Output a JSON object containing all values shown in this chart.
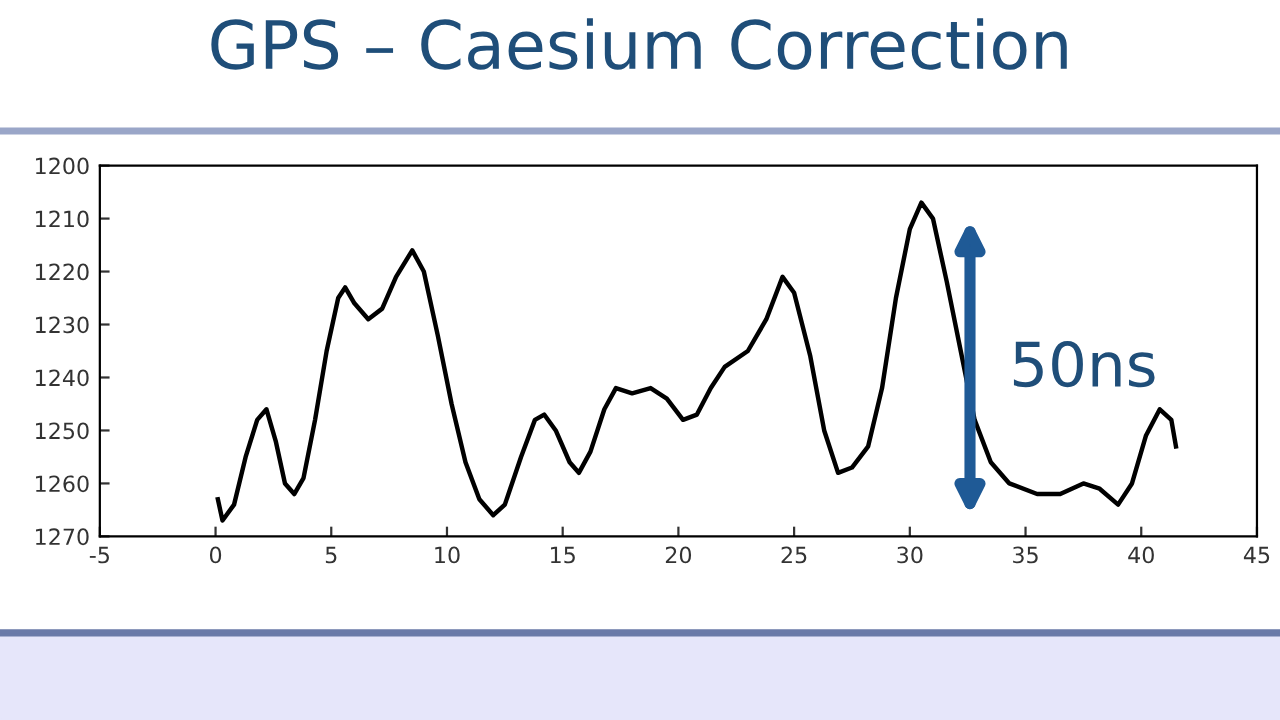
{
  "chart_data": {
    "type": "line",
    "title": "GPS – Caesium Correction",
    "x": [
      0.1,
      0.3,
      0.8,
      1.3,
      1.8,
      2.2,
      2.6,
      3.0,
      3.4,
      3.8,
      4.3,
      4.8,
      5.3,
      5.6,
      6.0,
      6.6,
      7.2,
      7.8,
      8.5,
      9.0,
      9.6,
      10.2,
      10.8,
      11.4,
      12.0,
      12.5,
      13.2,
      13.8,
      14.2,
      14.7,
      15.3,
      15.7,
      16.2,
      16.8,
      17.3,
      18.0,
      18.8,
      19.5,
      20.2,
      20.8,
      21.4,
      22.0,
      23.0,
      23.8,
      24.5,
      25.0,
      25.7,
      26.3,
      26.9,
      27.5,
      28.2,
      28.8,
      29.4,
      30.0,
      30.5,
      31.0,
      31.6,
      32.2,
      32.8,
      33.5,
      34.3,
      35.5,
      36.5,
      37.5,
      38.2,
      39.0,
      39.6,
      40.2,
      40.8,
      41.3,
      41.5
    ],
    "series": [
      {
        "color": "#000000",
        "values": [
          1263,
          1267,
          1264,
          1255,
          1248,
          1246,
          1252,
          1260,
          1262,
          1259,
          1248,
          1235,
          1225,
          1223,
          1226,
          1229,
          1227,
          1221,
          1216,
          1220,
          1232,
          1245,
          1256,
          1263,
          1266,
          1264,
          1255,
          1248,
          1247,
          1250,
          1256,
          1258,
          1254,
          1246,
          1242,
          1243,
          1242,
          1244,
          1248,
          1247,
          1242,
          1238,
          1235,
          1229,
          1221,
          1224,
          1236,
          1250,
          1258,
          1257,
          1253,
          1242,
          1225,
          1212,
          1207,
          1210,
          1222,
          1235,
          1248,
          1256,
          1260,
          1262,
          1262,
          1260,
          1261,
          1264,
          1260,
          1251,
          1246,
          1248,
          1253
        ]
      }
    ],
    "xlim": [
      -5,
      45
    ],
    "xticks": [
      -5,
      0,
      5,
      10,
      15,
      20,
      25,
      30,
      35,
      40,
      45
    ],
    "ylim": [
      1270,
      1200
    ],
    "yticks": [
      1200,
      1210,
      1220,
      1230,
      1240,
      1250,
      1260,
      1270
    ],
    "annotations": [
      "50ns"
    ],
    "grid": false,
    "legend": false,
    "marker": "none",
    "line_style": "solid"
  }
}
